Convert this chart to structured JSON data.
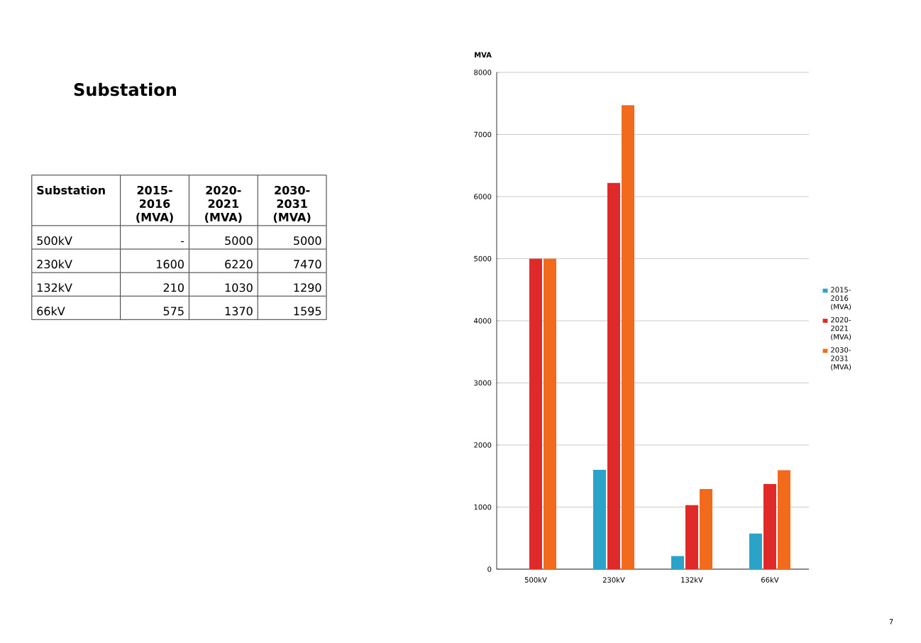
{
  "chart_data": [
    {
      "type": "bar",
      "ylabel": "MVA",
      "categories": [
        "500kV",
        "230kV",
        "132kV",
        "66kV"
      ],
      "series": [
        {
          "name": "2015-2016 (MVA)",
          "color": "#2ba3c8",
          "values": [
            null,
            1600,
            210,
            575
          ]
        },
        {
          "name": "2020-2021 (MVA)",
          "color": "#e02a2a",
          "values": [
            5000,
            6220,
            1030,
            1370
          ]
        },
        {
          "name": "2030-2031 (MVA)",
          "color": "#f26a1b",
          "values": [
            5000,
            7470,
            1290,
            1595
          ]
        }
      ],
      "ylim": [
        0,
        8000
      ],
      "yticks": [
        0,
        1000,
        2000,
        3000,
        4000,
        5000,
        6000,
        7000,
        8000
      ],
      "grid": "y",
      "legend": "right",
      "annotations": [
        "7"
      ]
    },
    {
      "type": "other",
      "title": "Substation",
      "categories": [
        "Substation",
        "2015-2016 (MVA)",
        "2020-2021 (MVA)",
        "2030-2031 (MVA)"
      ],
      "annotations": [
        "500kV",
        "-",
        "5000",
        "5000",
        "230kV",
        "1600",
        "6220",
        "7470",
        "132kV",
        "210",
        "1030",
        "1290",
        "66kV",
        "575",
        "1370",
        "1595"
      ]
    }
  ]
}
